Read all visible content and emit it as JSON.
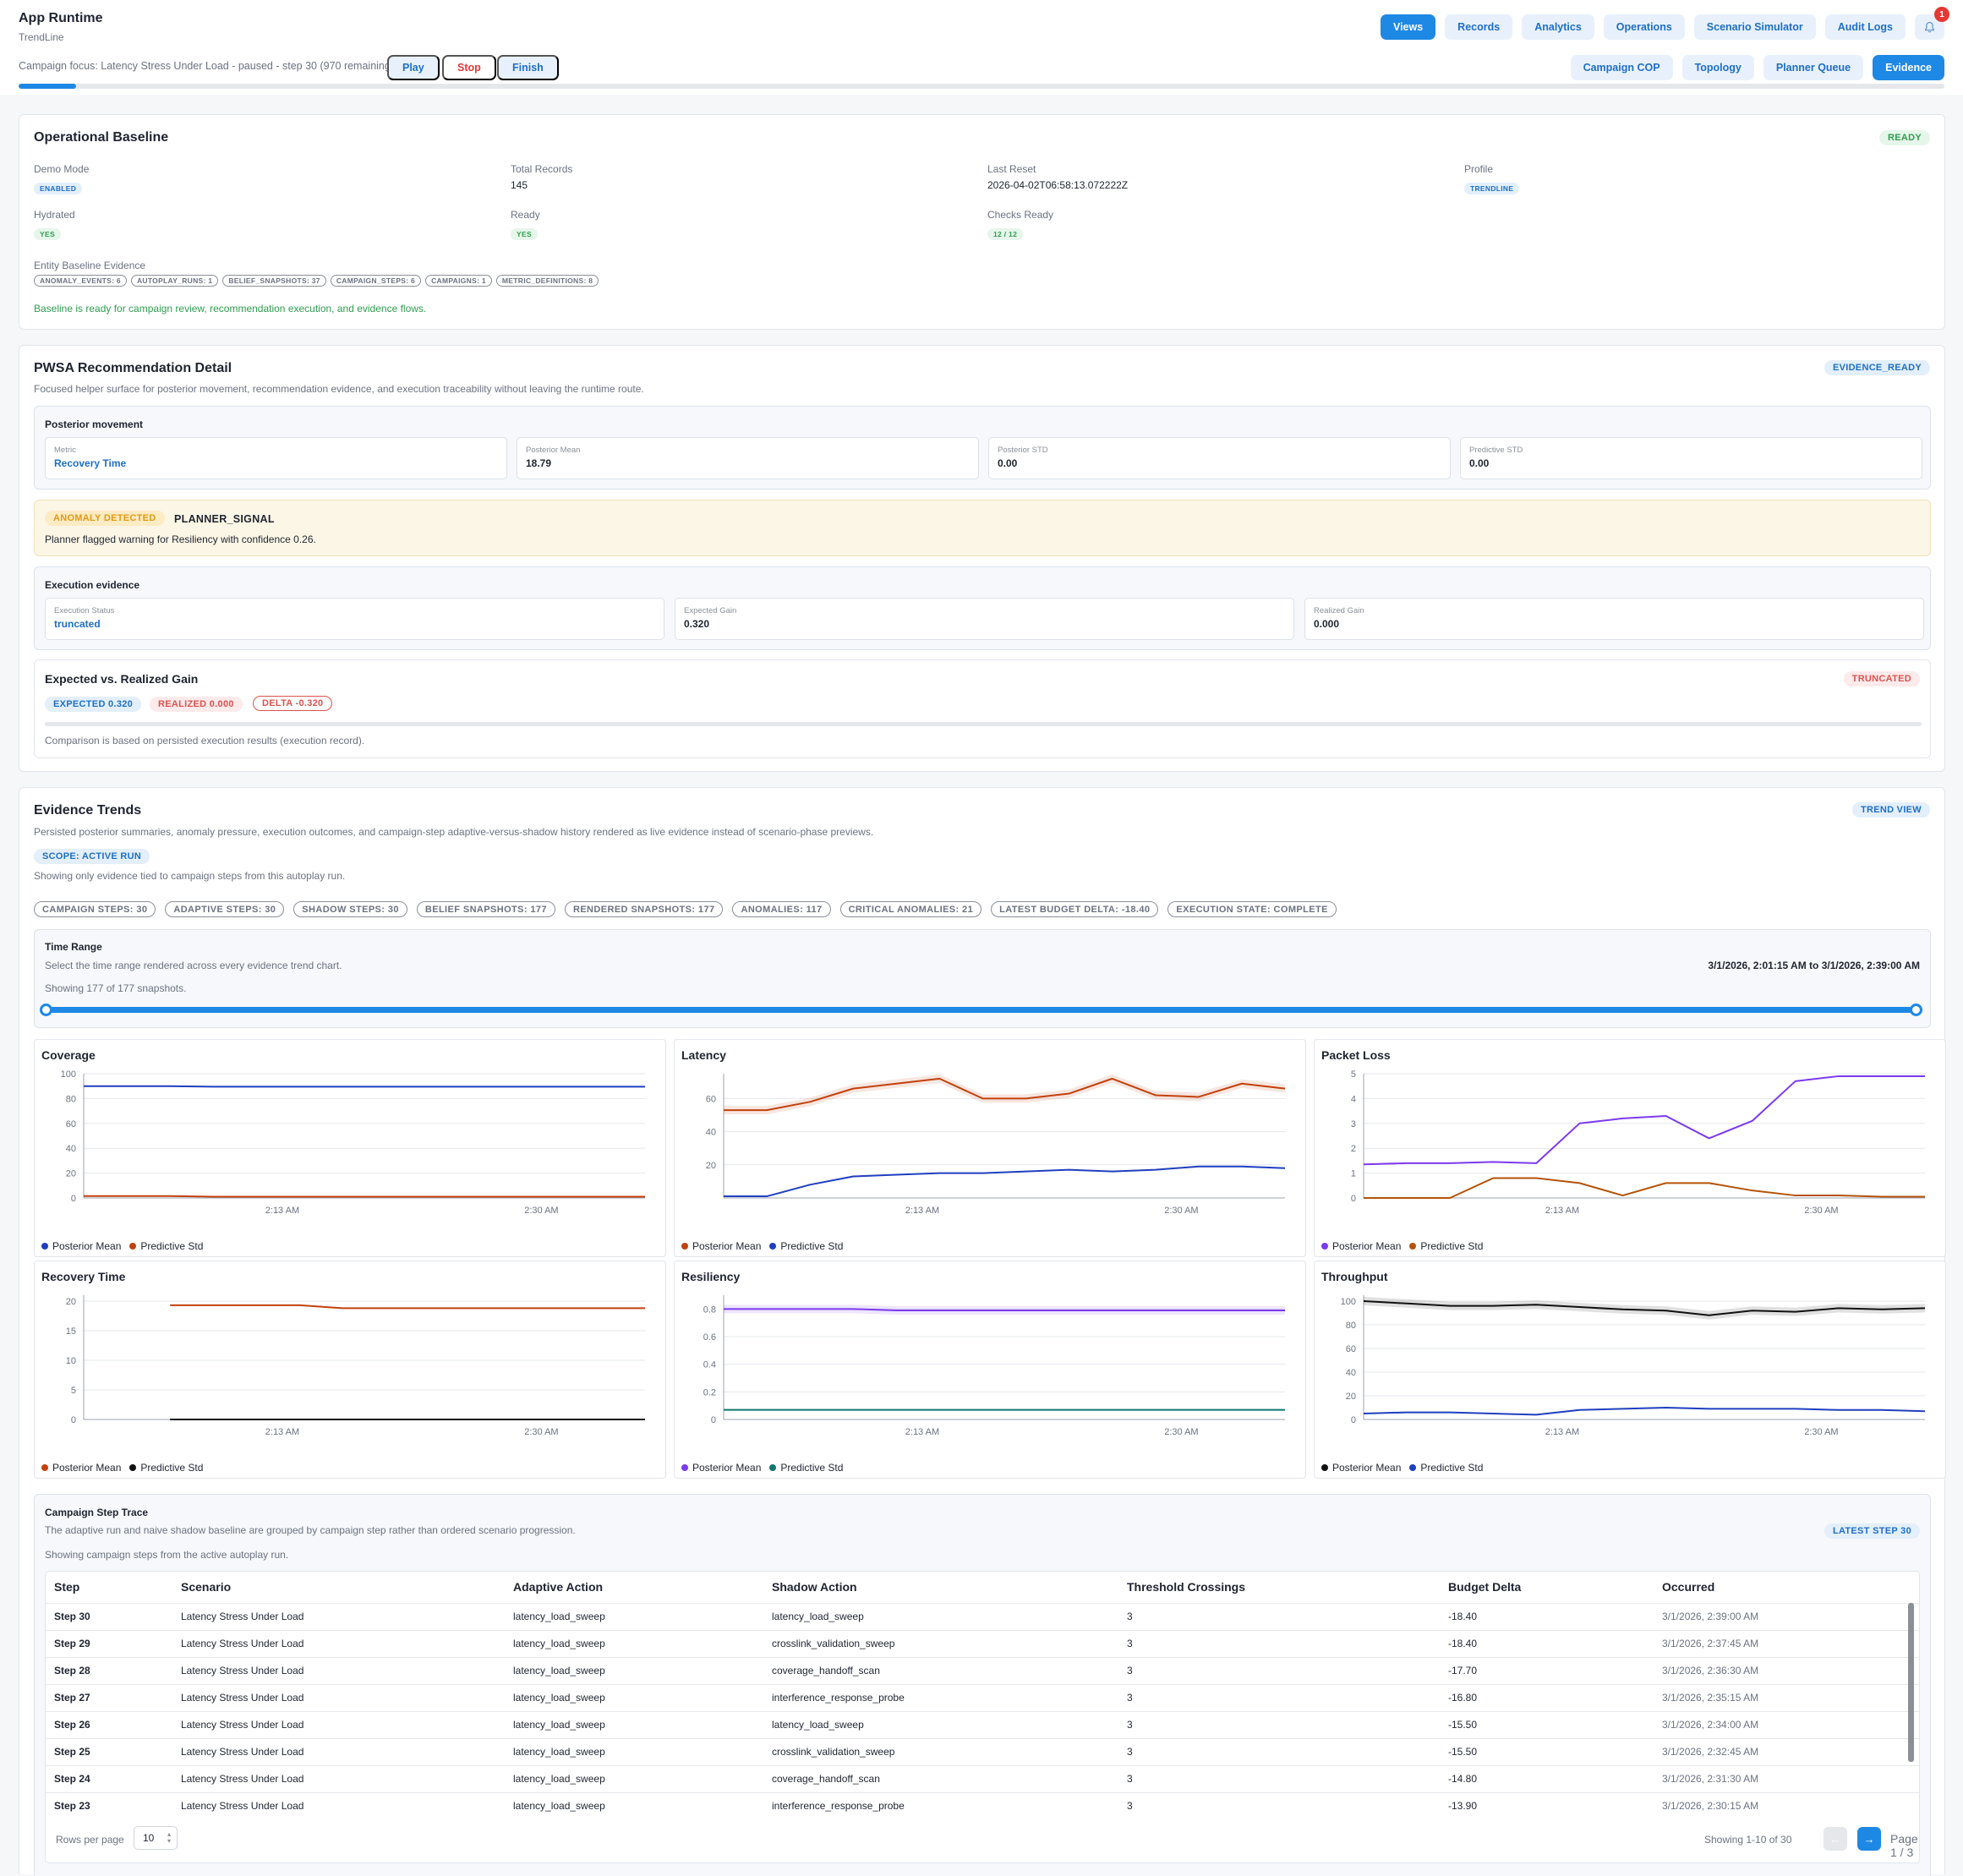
{
  "app": {
    "title": "App Runtime",
    "subtitle": "TrendLine"
  },
  "topnav": [
    "Views",
    "Records",
    "Analytics",
    "Operations",
    "Scenario Simulator",
    "Audit Logs"
  ],
  "notifications": {
    "count": "1"
  },
  "campaign": {
    "focus_text": "Campaign focus: Latency Stress Under Load - paused - step 30 (970 remaining)",
    "play": "Play",
    "stop": "Stop",
    "finish": "Finish",
    "progress": 0.03
  },
  "subnav": [
    "Campaign COP",
    "Topology",
    "Planner Queue",
    "Evidence"
  ],
  "baseline": {
    "title": "Operational Baseline",
    "status": "READY",
    "demo_mode_label": "Demo Mode",
    "demo_mode": "ENABLED",
    "total_records_label": "Total Records",
    "total_records": "145",
    "last_reset_label": "Last Reset",
    "last_reset": "2026-04-02T06:58:13.072222Z",
    "profile_label": "Profile",
    "profile": "TRENDLINE",
    "hydrated_label": "Hydrated",
    "hydrated": "YES",
    "ready_label": "Ready",
    "ready": "YES",
    "checks_label": "Checks Ready",
    "checks": "12 / 12",
    "evidence_label": "Entity Baseline Evidence",
    "evidence_chips": [
      "ANOMALY_EVENTS: 6",
      "AUTOPLAY_RUNS: 1",
      "BELIEF_SNAPSHOTS: 37",
      "CAMPAIGN_STEPS: 6",
      "CAMPAIGNS: 1",
      "METRIC_DEFINITIONS: 8"
    ],
    "message": "Baseline is ready for campaign review, recommendation execution, and evidence flows."
  },
  "pwsa": {
    "title": "PWSA Recommendation Detail",
    "status": "EVIDENCE_READY",
    "description": "Focused helper surface for posterior movement, recommendation evidence, and execution traceability without leaving the runtime route.",
    "posterior": {
      "title": "Posterior movement",
      "metric_label": "Metric",
      "metric": "Recovery Time",
      "mean_label": "Posterior Mean",
      "mean": "18.79",
      "std_label": "Posterior STD",
      "std": "0.00",
      "pred_label": "Predictive STD",
      "pred": "0.00"
    },
    "anomaly": {
      "badge": "ANOMALY DETECTED",
      "signal": "PLANNER_SIGNAL",
      "message": "Planner flagged warning for Resiliency with confidence 0.26."
    },
    "execution": {
      "title": "Execution evidence",
      "status_label": "Execution Status",
      "status": "truncated",
      "expected_label": "Expected Gain",
      "expected": "0.320",
      "realized_label": "Realized Gain",
      "realized": "0.000"
    },
    "gain": {
      "title": "Expected vs. Realized Gain",
      "status": "TRUNCATED",
      "expected": "EXPECTED 0.320",
      "realized": "REALIZED 0.000",
      "delta": "DELTA -0.320",
      "note": "Comparison is based on persisted execution results (execution record)."
    }
  },
  "trends": {
    "title": "Evidence Trends",
    "badge": "TREND VIEW",
    "description": "Persisted posterior summaries, anomaly pressure, execution outcomes, and campaign-step adaptive-versus-shadow history rendered as live evidence instead of scenario-phase previews.",
    "scope": "SCOPE: ACTIVE RUN",
    "scope_note": "Showing only evidence tied to campaign steps from this autoplay run.",
    "chips": [
      "CAMPAIGN STEPS: 30",
      "ADAPTIVE STEPS: 30",
      "SHADOW STEPS: 30",
      "BELIEF SNAPSHOTS: 177",
      "RENDERED SNAPSHOTS: 177",
      "ANOMALIES: 117",
      "CRITICAL ANOMALIES: 21",
      "LATEST BUDGET DELTA: -18.40",
      "EXECUTION STATE: COMPLETE"
    ],
    "time_range": {
      "title": "Time Range",
      "description": "Select the time range rendered across every evidence trend chart.",
      "range": "3/1/2026, 2:01:15 AM to 3/1/2026, 2:39:00 AM",
      "showing": "Showing 177 of 177 snapshots.",
      "start": 0,
      "end": 1
    }
  },
  "chart_data": [
    {
      "type": "line",
      "title": "Coverage",
      "x": [
        "2:01 AM",
        "2:04 AM",
        "2:07 AM",
        "2:10 AM",
        "2:13 AM",
        "2:16 AM",
        "2:19 AM",
        "2:22 AM",
        "2:25 AM",
        "2:28 AM",
        "2:30 AM",
        "2:33 AM",
        "2:36 AM",
        "2:39 AM"
      ],
      "x_ticks": [
        "2:13 AM",
        "2:30 AM"
      ],
      "ylim": [
        0,
        100
      ],
      "y_ticks": [
        0,
        20,
        40,
        60,
        80,
        100
      ],
      "series": [
        {
          "name": "Posterior Mean",
          "color": "#1f3fbf",
          "values": [
            90,
            90,
            90,
            89.5,
            89.5,
            89.5,
            89.5,
            89.5,
            89.5,
            89.5,
            89.5,
            89.5,
            89.5,
            89.5
          ]
        },
        {
          "name": "Predictive Std",
          "color": "#c2410c",
          "values": [
            1.5,
            1.5,
            1.5,
            1,
            1,
            1,
            1,
            1,
            1,
            1,
            1,
            1,
            1,
            1
          ]
        }
      ]
    },
    {
      "type": "line",
      "title": "Latency",
      "x": [
        "2:01 AM",
        "2:04 AM",
        "2:07 AM",
        "2:10 AM",
        "2:13 AM",
        "2:16 AM",
        "2:19 AM",
        "2:22 AM",
        "2:25 AM",
        "2:28 AM",
        "2:30 AM",
        "2:33 AM",
        "2:36 AM",
        "2:39 AM"
      ],
      "x_ticks": [
        "2:13 AM",
        "2:30 AM"
      ],
      "ylim": [
        0,
        75
      ],
      "y_ticks": [
        20,
        40,
        60
      ],
      "series": [
        {
          "name": "Posterior Mean",
          "color": "#c2410c",
          "band": true,
          "values": [
            53,
            53,
            58,
            66,
            69,
            72,
            60,
            60,
            63,
            72,
            62,
            61,
            69,
            66
          ]
        },
        {
          "name": "Predictive Std",
          "color": "#1f3fbf",
          "values": [
            1,
            1,
            8,
            13,
            14,
            15,
            15,
            16,
            17,
            16,
            17,
            19,
            19,
            18
          ]
        }
      ]
    },
    {
      "type": "line",
      "title": "Packet Loss",
      "x": [
        "2:01 AM",
        "2:04 AM",
        "2:07 AM",
        "2:10 AM",
        "2:13 AM",
        "2:16 AM",
        "2:19 AM",
        "2:22 AM",
        "2:25 AM",
        "2:28 AM",
        "2:30 AM",
        "2:33 AM",
        "2:36 AM",
        "2:39 AM"
      ],
      "x_ticks": [
        "2:13 AM",
        "2:30 AM"
      ],
      "ylim": [
        0,
        5
      ],
      "y_ticks": [
        0,
        1,
        2,
        3,
        4,
        5
      ],
      "series": [
        {
          "name": "Posterior Mean",
          "color": "#7c3aed",
          "values": [
            1.35,
            1.4,
            1.4,
            1.45,
            1.4,
            3.0,
            3.2,
            3.3,
            2.4,
            3.1,
            4.7,
            4.9,
            4.9,
            4.9
          ]
        },
        {
          "name": "Predictive Std",
          "color": "#b45309",
          "values": [
            0,
            0,
            0,
            0.8,
            0.8,
            0.6,
            0.1,
            0.6,
            0.6,
            0.3,
            0.1,
            0.1,
            0.05,
            0.05
          ]
        }
      ]
    },
    {
      "type": "line",
      "title": "Recovery Time",
      "x": [
        "2:01 AM",
        "2:04 AM",
        "2:07 AM",
        "2:10 AM",
        "2:13 AM",
        "2:16 AM",
        "2:19 AM",
        "2:22 AM",
        "2:25 AM",
        "2:28 AM",
        "2:30 AM",
        "2:33 AM",
        "2:36 AM",
        "2:39 AM"
      ],
      "x_ticks": [
        "2:13 AM",
        "2:30 AM"
      ],
      "ylim": [
        0,
        21
      ],
      "y_ticks": [
        0,
        5,
        10,
        15,
        20
      ],
      "series": [
        {
          "name": "Posterior Mean",
          "color": "#c2410c",
          "values": [
            null,
            null,
            19.3,
            19.3,
            19.3,
            19.3,
            18.8,
            18.8,
            18.8,
            18.8,
            18.8,
            18.8,
            18.8,
            18.8
          ]
        },
        {
          "name": "Predictive Std",
          "color": "#111111",
          "values": [
            null,
            null,
            0,
            0,
            0,
            0,
            0,
            0,
            0,
            0,
            0,
            0,
            0,
            0
          ]
        }
      ]
    },
    {
      "type": "line",
      "title": "Resiliency",
      "x": [
        "2:01 AM",
        "2:04 AM",
        "2:07 AM",
        "2:10 AM",
        "2:13 AM",
        "2:16 AM",
        "2:19 AM",
        "2:22 AM",
        "2:25 AM",
        "2:28 AM",
        "2:30 AM",
        "2:33 AM",
        "2:36 AM",
        "2:39 AM"
      ],
      "x_ticks": [
        "2:13 AM",
        "2:30 AM"
      ],
      "ylim": [
        0,
        0.9
      ],
      "y_ticks": [
        0,
        0.2,
        0.4,
        0.6,
        0.8
      ],
      "series": [
        {
          "name": "Posterior Mean",
          "color": "#7c3aed",
          "band": true,
          "values": [
            0.8,
            0.8,
            0.8,
            0.8,
            0.79,
            0.79,
            0.79,
            0.79,
            0.79,
            0.79,
            0.79,
            0.79,
            0.79,
            0.79
          ]
        },
        {
          "name": "Predictive Std",
          "color": "#0f766e",
          "values": [
            0.07,
            0.07,
            0.07,
            0.07,
            0.07,
            0.07,
            0.07,
            0.07,
            0.07,
            0.07,
            0.07,
            0.07,
            0.07,
            0.07
          ]
        }
      ]
    },
    {
      "type": "line",
      "title": "Throughput",
      "x": [
        "2:01 AM",
        "2:04 AM",
        "2:07 AM",
        "2:10 AM",
        "2:13 AM",
        "2:16 AM",
        "2:19 AM",
        "2:22 AM",
        "2:25 AM",
        "2:28 AM",
        "2:30 AM",
        "2:33 AM",
        "2:36 AM",
        "2:39 AM"
      ],
      "x_ticks": [
        "2:13 AM",
        "2:30 AM"
      ],
      "ylim": [
        0,
        105
      ],
      "y_ticks": [
        0,
        20,
        40,
        60,
        80,
        100
      ],
      "series": [
        {
          "name": "Posterior Mean",
          "color": "#111111",
          "band": true,
          "values": [
            100,
            98,
            96,
            96,
            97,
            95,
            93,
            92,
            88,
            92,
            91,
            94,
            93,
            94
          ]
        },
        {
          "name": "Predictive Std",
          "color": "#1f3fbf",
          "values": [
            5,
            6,
            6,
            5,
            4,
            8,
            9,
            10,
            9,
            9,
            9,
            8,
            8,
            7
          ]
        }
      ]
    }
  ],
  "trace": {
    "title": "Campaign Step Trace",
    "description": "The adaptive run and naive shadow baseline are grouped by campaign step rather than ordered scenario progression.",
    "badge": "LATEST STEP 30",
    "note": "Showing campaign steps from the active autoplay run.",
    "columns": [
      "Step",
      "Scenario",
      "Adaptive Action",
      "Shadow Action",
      "Threshold Crossings",
      "Budget Delta",
      "Occurred"
    ],
    "rows": [
      [
        "Step 30",
        "Latency Stress Under Load",
        "latency_load_sweep",
        "latency_load_sweep",
        "3",
        "-18.40",
        "3/1/2026, 2:39:00 AM"
      ],
      [
        "Step 29",
        "Latency Stress Under Load",
        "latency_load_sweep",
        "crosslink_validation_sweep",
        "3",
        "-18.40",
        "3/1/2026, 2:37:45 AM"
      ],
      [
        "Step 28",
        "Latency Stress Under Load",
        "latency_load_sweep",
        "coverage_handoff_scan",
        "3",
        "-17.70",
        "3/1/2026, 2:36:30 AM"
      ],
      [
        "Step 27",
        "Latency Stress Under Load",
        "latency_load_sweep",
        "interference_response_probe",
        "3",
        "-16.80",
        "3/1/2026, 2:35:15 AM"
      ],
      [
        "Step 26",
        "Latency Stress Under Load",
        "latency_load_sweep",
        "latency_load_sweep",
        "3",
        "-15.50",
        "3/1/2026, 2:34:00 AM"
      ],
      [
        "Step 25",
        "Latency Stress Under Load",
        "latency_load_sweep",
        "crosslink_validation_sweep",
        "3",
        "-15.50",
        "3/1/2026, 2:32:45 AM"
      ],
      [
        "Step 24",
        "Latency Stress Under Load",
        "latency_load_sweep",
        "coverage_handoff_scan",
        "3",
        "-14.80",
        "3/1/2026, 2:31:30 AM"
      ],
      [
        "Step 23",
        "Latency Stress Under Load",
        "latency_load_sweep",
        "interference_response_probe",
        "3",
        "-13.90",
        "3/1/2026, 2:30:15 AM"
      ]
    ],
    "rows_per_page_label": "Rows per page",
    "rows_per_page": "10",
    "showing": "Showing 1-10 of 30",
    "page": "Page 1 / 3",
    "prev": "←",
    "next": "→"
  }
}
